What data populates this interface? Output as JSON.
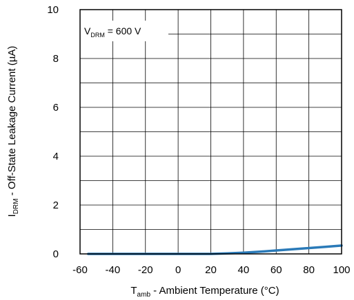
{
  "chart_data": {
    "type": "line",
    "xlabel": {
      "main": "T",
      "sub": "amb",
      "rest": " - Ambient Temperature (°C)"
    },
    "ylabel": {
      "main": "I",
      "sub": "DRM",
      "rest": " - Off-State Leakage Current (µA)"
    },
    "xlim": [
      -60,
      100
    ],
    "ylim": [
      0,
      10
    ],
    "x_ticks": [
      -60,
      -40,
      -20,
      0,
      20,
      40,
      60,
      80,
      100
    ],
    "y_ticks": [
      0,
      2,
      4,
      6,
      8,
      10
    ],
    "grid": true,
    "annotation": {
      "main": "V",
      "sub": "DRM",
      "rest": " = 600 V"
    },
    "series": [
      {
        "color": "#2a7ab8",
        "x": [
          -55,
          -40,
          -20,
          0,
          20,
          25,
          30,
          40,
          50,
          60,
          70,
          80,
          90,
          100
        ],
        "y": [
          0.0,
          0.0,
          0.0,
          0.0,
          0.0,
          0.01,
          0.02,
          0.05,
          0.09,
          0.14,
          0.19,
          0.24,
          0.29,
          0.34
        ]
      }
    ]
  }
}
